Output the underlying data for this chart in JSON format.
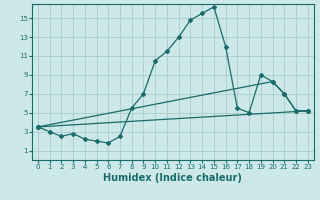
{
  "xlabel": "Humidex (Indice chaleur)",
  "bg_color": "#cce8e8",
  "grid_color": "#aacccc",
  "line_color": "#1a6b6b",
  "xlim": [
    -0.5,
    23.5
  ],
  "ylim": [
    0,
    16.5
  ],
  "xticks": [
    0,
    1,
    2,
    3,
    4,
    5,
    6,
    7,
    8,
    9,
    10,
    11,
    12,
    13,
    14,
    15,
    16,
    17,
    18,
    19,
    20,
    21,
    22,
    23
  ],
  "yticks": [
    1,
    3,
    5,
    7,
    9,
    11,
    13,
    15
  ],
  "line1_x": [
    0,
    1,
    2,
    3,
    4,
    5,
    6,
    7,
    8,
    9,
    10,
    11,
    12,
    13,
    14,
    15,
    16,
    17,
    18,
    19,
    20,
    21,
    22,
    23
  ],
  "line1_y": [
    3.5,
    3.0,
    2.5,
    2.8,
    2.2,
    2.0,
    1.8,
    2.5,
    5.5,
    7.0,
    10.5,
    11.5,
    13.0,
    14.8,
    15.5,
    16.2,
    12.0,
    5.5,
    5.0,
    9.0,
    8.3,
    7.0,
    5.2,
    5.2
  ],
  "line2_x": [
    0,
    23
  ],
  "line2_y": [
    3.5,
    5.2
  ],
  "line3_x": [
    0,
    20,
    21,
    22,
    23
  ],
  "line3_y": [
    3.5,
    8.3,
    7.0,
    5.2,
    5.2
  ],
  "xlabel_fontsize": 7,
  "tick_fontsize": 5,
  "linewidth": 0.9,
  "markersize": 2.0
}
